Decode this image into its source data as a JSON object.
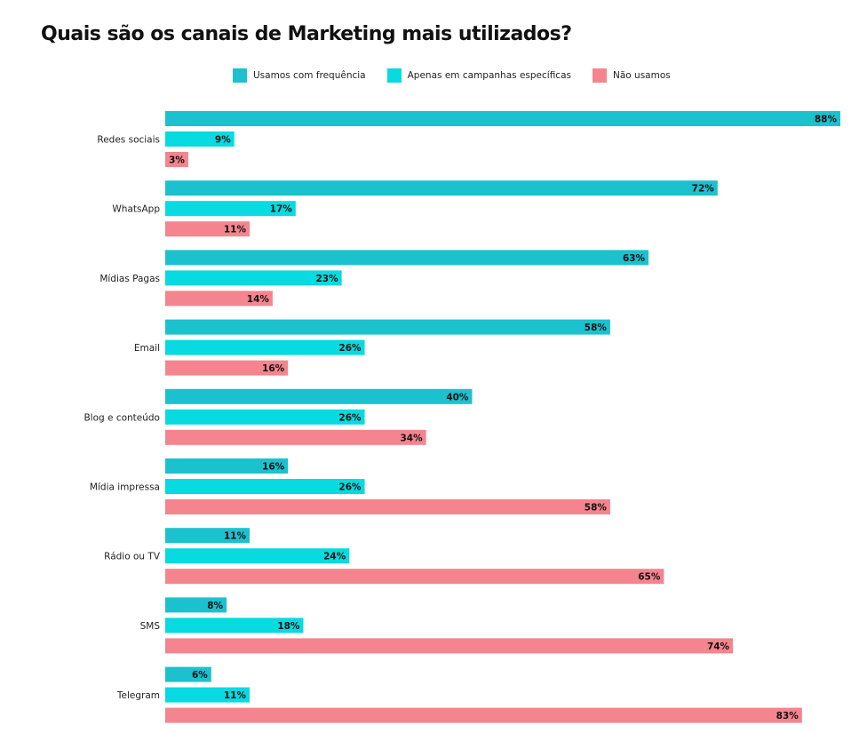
{
  "chart_data": {
    "type": "bar",
    "orientation": "horizontal",
    "title": "Quais são os canais de Marketing mais utilizados?",
    "xlabel": "",
    "ylabel": "",
    "xlim": [
      0,
      88
    ],
    "grid": false,
    "legend_position": "top",
    "categories": [
      "Redes sociais",
      "WhatsApp",
      "Mídias Pagas",
      "Email",
      "Blog e conteúdo",
      "Mídia impressa",
      "Rádio ou TV",
      "SMS",
      "Telegram"
    ],
    "series": [
      {
        "name": "Usamos com frequência",
        "color": "#1CC1CE",
        "values": [
          88,
          72,
          63,
          58,
          40,
          16,
          11,
          8,
          6
        ]
      },
      {
        "name": "Apenas em campanhas específicas",
        "color": "#07DAE0",
        "values": [
          9,
          17,
          23,
          26,
          26,
          26,
          24,
          18,
          11
        ]
      },
      {
        "name": "Não usamos",
        "color": "#F4848E",
        "values": [
          3,
          11,
          14,
          16,
          34,
          58,
          65,
          74,
          83
        ]
      }
    ],
    "value_suffix": "%"
  }
}
